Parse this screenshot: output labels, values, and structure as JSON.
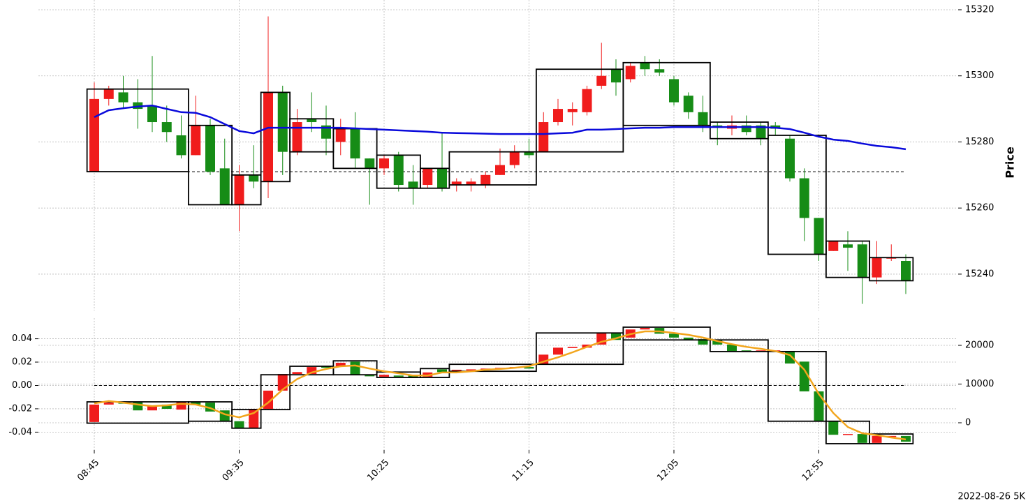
{
  "chart_data": [
    {
      "type": "candlestick",
      "ylabel": "Price",
      "yaxis_position": "right",
      "ylim": [
        15230,
        15322
      ],
      "yticks": [
        15240,
        15260,
        15280,
        15300,
        15320
      ],
      "grid": true,
      "up_color": "#f01c1c",
      "down_color": "#168c16",
      "candles": {
        "open": [
          15271,
          15293,
          15295,
          15292,
          15291,
          15286,
          15282,
          15276,
          15285,
          15272,
          15261,
          15270,
          15268,
          15295,
          15277,
          15287,
          15285,
          15280,
          15284,
          15275,
          15272,
          15276,
          15268,
          15267,
          15272,
          15267,
          15267,
          15267,
          15270,
          15273,
          15277,
          15277,
          15286,
          15289,
          15289,
          15297,
          15302,
          15299,
          15304,
          15302,
          15299,
          15294,
          15289,
          15285,
          15284,
          15285,
          15285,
          15285,
          15281,
          15269,
          15257,
          15247,
          15249,
          15249,
          15239,
          15245,
          15244
        ],
        "high": [
          15298,
          15297,
          15300,
          15299,
          15306,
          15291,
          15288,
          15294,
          15287,
          15281,
          15273,
          15279,
          15318,
          15297,
          15290,
          15295,
          15291,
          15287,
          15289,
          15275,
          15276,
          15277,
          15273,
          15272,
          15283,
          15269,
          15269,
          15271,
          15278,
          15279,
          15281,
          15289,
          15293,
          15292,
          15297,
          15310,
          15305,
          15304,
          15306,
          15305,
          15300,
          15295,
          15294,
          15286,
          15288,
          15288,
          15286,
          15286,
          15282,
          15272,
          15257,
          15250,
          15253,
          15250,
          15250,
          15249,
          15246
        ],
        "low": [
          15271,
          15291,
          15290,
          15284,
          15283,
          15280,
          15275,
          15276,
          15270,
          15261,
          15253,
          15266,
          15263,
          15270,
          15276,
          15283,
          15276,
          15276,
          15272,
          15261,
          15270,
          15265,
          15261,
          15266,
          15265,
          15265,
          15265,
          15266,
          15270,
          15272,
          15275,
          15277,
          15285,
          15285,
          15288,
          15296,
          15294,
          15298,
          15300,
          15300,
          15291,
          15287,
          15283,
          15279,
          15282,
          15282,
          15279,
          15282,
          15268,
          15250,
          15244,
          15247,
          15241,
          15231,
          15237,
          15244,
          15234
        ],
        "close": [
          15293,
          15296,
          15292,
          15290,
          15286,
          15283,
          15276,
          15285,
          15271,
          15261,
          15270,
          15268,
          15295,
          15277,
          15286,
          15286,
          15281,
          15284,
          15275,
          15272,
          15275,
          15267,
          15266,
          15272,
          15266,
          15268,
          15268,
          15270,
          15273,
          15277,
          15276,
          15286,
          15290,
          15290,
          15296,
          15300,
          15298,
          15303,
          15302,
          15301,
          15292,
          15289,
          15285,
          15284.5,
          15285,
          15283,
          15281,
          15284,
          15269,
          15257,
          15246,
          15250,
          15248,
          15239,
          15245,
          15245,
          15238
        ]
      },
      "line": {
        "color": "#0a0adb",
        "values": [
          15287.5,
          15289.6,
          15290.2,
          15290.7,
          15291,
          15290,
          15289,
          15288.8,
          15287.5,
          15285.4,
          15283.3,
          15282.6,
          15284.3,
          15284.3,
          15284.3,
          15284.3,
          15284.3,
          15284.3,
          15284.1,
          15283.9,
          15283.7,
          15283.5,
          15283.3,
          15283.1,
          15282.8,
          15282.7,
          15282.6,
          15282.5,
          15282.4,
          15282.4,
          15282.4,
          15282.4,
          15282.6,
          15282.8,
          15283.7,
          15283.7,
          15283.9,
          15284.1,
          15284.3,
          15284.3,
          15284.5,
          15284.5,
          15284.5,
          15284.5,
          15284.5,
          15284.5,
          15284.5,
          15284.3,
          15283.9,
          15282.8,
          15281.6,
          15280.7,
          15280.3,
          15279.5,
          15278.8,
          15278.4,
          15277.8
        ]
      },
      "hline": {
        "value": 15271,
        "color": "#000000"
      },
      "boxes": [
        {
          "start": 0,
          "end": 6,
          "high": 15296,
          "low": 15271
        },
        {
          "start": 7,
          "end": 9,
          "high": 15285,
          "low": 15261
        },
        {
          "start": 10,
          "end": 11,
          "high": 15270,
          "low": 15261
        },
        {
          "start": 12,
          "end": 13,
          "high": 15295,
          "low": 15268
        },
        {
          "start": 14,
          "end": 16,
          "high": 15287,
          "low": 15277
        },
        {
          "start": 17,
          "end": 19,
          "high": 15284,
          "low": 15272
        },
        {
          "start": 20,
          "end": 22,
          "high": 15276,
          "low": 15266
        },
        {
          "start": 23,
          "end": 24,
          "high": 15272,
          "low": 15266
        },
        {
          "start": 25,
          "end": 30,
          "high": 15277,
          "low": 15267
        },
        {
          "start": 31,
          "end": 36,
          "high": 15302,
          "low": 15277
        },
        {
          "start": 37,
          "end": 42,
          "high": 15304,
          "low": 15285
        },
        {
          "start": 43,
          "end": 46,
          "high": 15286,
          "low": 15281
        },
        {
          "start": 47,
          "end": 50,
          "high": 15282,
          "low": 15246
        },
        {
          "start": 51,
          "end": 53,
          "high": 15250,
          "low": 15239
        },
        {
          "start": 54,
          "end": 56,
          "high": 15245,
          "low": 15238
        }
      ]
    },
    {
      "type": "candlestick",
      "yaxis_position": "left",
      "x": [
        "08:45",
        null,
        null,
        null,
        null,
        null,
        null,
        null,
        null,
        null,
        "09:35",
        null,
        null,
        null,
        null,
        null,
        null,
        null,
        null,
        null,
        "10:25",
        null,
        null,
        null,
        null,
        null,
        null,
        null,
        null,
        null,
        "11:15",
        null,
        null,
        null,
        null,
        null,
        null,
        null,
        null,
        null,
        "12:05",
        null,
        null,
        null,
        null,
        null,
        null,
        null,
        null,
        null,
        "12:55",
        null,
        null,
        null,
        null,
        null,
        null
      ],
      "ylim": [
        -0.0553,
        0.0517
      ],
      "yticks": [
        -0.04,
        -0.02,
        {
          "value": 0,
          "label": "0.00"
        },
        0.02,
        0.04
      ],
      "y2lim": [
        -7030,
        25230
      ],
      "y2ticks": [
        0,
        10000,
        20000
      ],
      "grid": true,
      "up_color": "#f01c1c",
      "down_color": "#168c16",
      "candles": {
        "axis": "y2",
        "open": [
          200,
          4700,
          5200,
          5400,
          3200,
          4700,
          3400,
          5400,
          5200,
          3200,
          400,
          -1400,
          3600,
          8300,
          12600,
          12600,
          14600,
          14600,
          15800,
          12400,
          11900,
          12200,
          12200,
          11900,
          13800,
          13300,
          13500,
          13700,
          13900,
          14100,
          14400,
          15100,
          17600,
          19300,
          19400,
          20200,
          23200,
          22000,
          24100,
          24500,
          23000,
          22000,
          21600,
          21400,
          20200,
          18700,
          18400,
          18500,
          18400,
          15800,
          8100,
          400,
          -3100,
          -2900,
          -5200,
          -3600,
          -3400
        ],
        "close": [
          4700,
          5200,
          5000,
          3200,
          4300,
          3600,
          5400,
          4700,
          2900,
          400,
          -1400,
          3600,
          8300,
          12600,
          13100,
          14400,
          14200,
          15500,
          12400,
          12000,
          12400,
          11900,
          11700,
          13000,
          13100,
          13700,
          13800,
          14000,
          14200,
          14400,
          14000,
          17600,
          19400,
          19600,
          20200,
          23200,
          21400,
          24100,
          24500,
          23000,
          22000,
          21400,
          20200,
          20200,
          18500,
          18400,
          18700,
          18700,
          15300,
          8100,
          400,
          -3100,
          -2900,
          -5200,
          -3400,
          -3400,
          -4900
        ]
      },
      "line": {
        "axis": "y2",
        "color": "#f2a51c",
        "values": [
          5000,
          5600,
          5200,
          4700,
          4300,
          4500,
          4900,
          4700,
          3800,
          2200,
          1400,
          2500,
          5200,
          8600,
          11300,
          13000,
          13900,
          14600,
          14800,
          14000,
          13300,
          12800,
          12200,
          12200,
          13000,
          13000,
          13300,
          13700,
          13900,
          14200,
          14600,
          15800,
          16900,
          18200,
          19600,
          20900,
          21800,
          22900,
          23600,
          23600,
          23200,
          22700,
          22000,
          21100,
          20300,
          19600,
          19100,
          18500,
          17500,
          13700,
          7400,
          2500,
          -1100,
          -2700,
          -3200,
          -3800,
          -4300
        ]
      },
      "hline": {
        "value": 0,
        "color": "#000000"
      },
      "boxes_axis": "y2",
      "boxes": [
        {
          "start": 0,
          "end": 6,
          "high": 5400,
          "low": -100
        },
        {
          "start": 7,
          "end": 9,
          "high": 5400,
          "low": 400
        },
        {
          "start": 10,
          "end": 11,
          "high": 3400,
          "low": -1400
        },
        {
          "start": 12,
          "end": 13,
          "high": 12400,
          "low": 3400
        },
        {
          "start": 14,
          "end": 16,
          "high": 14600,
          "low": 12400
        },
        {
          "start": 17,
          "end": 19,
          "high": 16000,
          "low": 12400
        },
        {
          "start": 20,
          "end": 22,
          "high": 13100,
          "low": 11700
        },
        {
          "start": 23,
          "end": 24,
          "high": 14000,
          "low": 11700
        },
        {
          "start": 25,
          "end": 30,
          "high": 15100,
          "low": 13300
        },
        {
          "start": 31,
          "end": 36,
          "high": 23200,
          "low": 15100
        },
        {
          "start": 37,
          "end": 42,
          "high": 24700,
          "low": 21400
        },
        {
          "start": 43,
          "end": 46,
          "high": 21400,
          "low": 18400
        },
        {
          "start": 47,
          "end": 50,
          "high": 18400,
          "low": 400
        },
        {
          "start": 51,
          "end": 53,
          "high": 400,
          "low": -5400
        },
        {
          "start": 54,
          "end": 56,
          "high": -2900,
          "low": -5400
        }
      ]
    }
  ],
  "footer": "2022-08-26 5K"
}
